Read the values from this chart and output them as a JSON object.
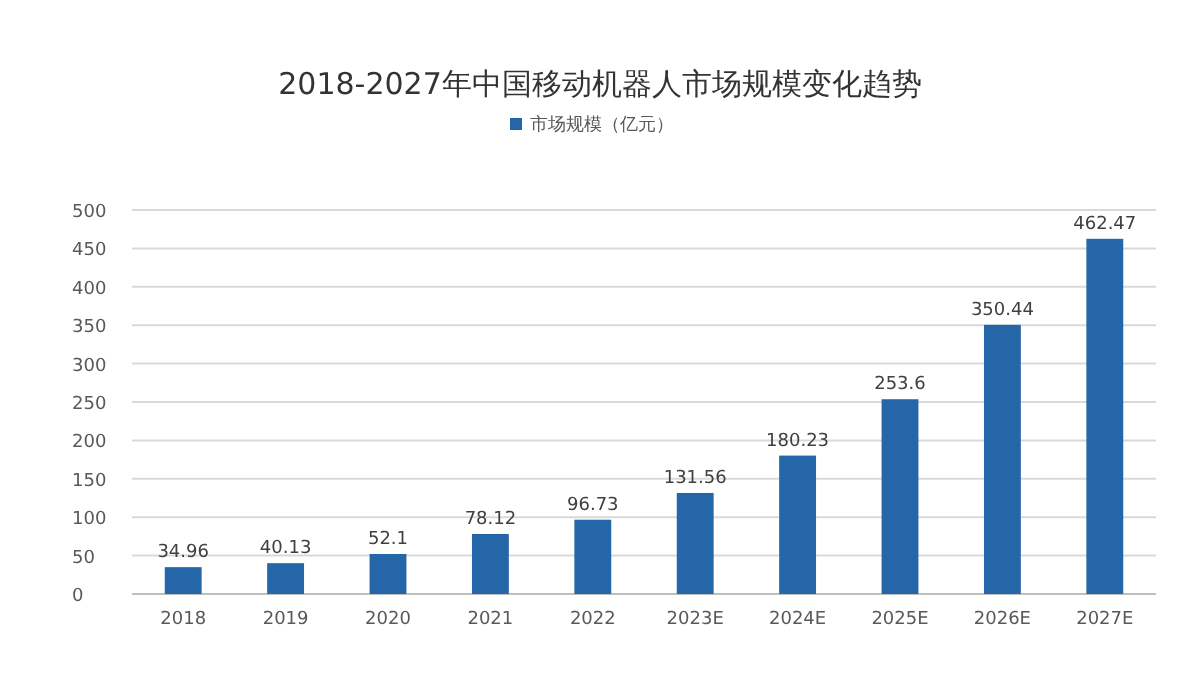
{
  "chart_data": {
    "type": "bar",
    "title": "2018-2027年中国移动机器人市场规模变化趋势",
    "categories": [
      "2018",
      "2019",
      "2020",
      "2021",
      "2022",
      "2023E",
      "2024E",
      "2025E",
      "2026E",
      "2027E"
    ],
    "series": [
      {
        "name": "市场规模（亿元）",
        "color": "#2566a8",
        "values": [
          34.96,
          40.13,
          52.1,
          78.12,
          96.73,
          131.56,
          180.23,
          253.6,
          350.44,
          462.47
        ]
      }
    ],
    "ylim": [
      0,
      500
    ],
    "yticks": [
      0,
      50,
      100,
      150,
      200,
      250,
      300,
      350,
      400,
      450,
      500
    ],
    "grid": "y",
    "legend": "top",
    "data_labels": true
  }
}
